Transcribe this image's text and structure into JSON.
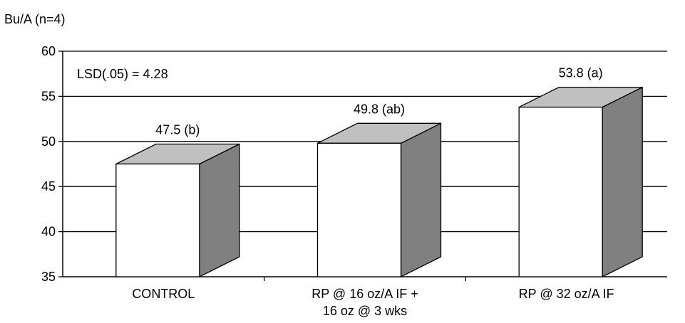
{
  "chart_data": {
    "type": "bar",
    "ylabel": "Bu/A (n=4)",
    "annotation": "LSD(.05) = 4.28",
    "categories": [
      [
        "CONTROL"
      ],
      [
        "RP @ 16 oz/A IF +",
        "16 oz @ 3 wks"
      ],
      [
        "RP @ 32 oz/A IF"
      ]
    ],
    "values": [
      47.5,
      49.8,
      53.8
    ],
    "data_labels": [
      "47.5 (b)",
      "49.8 (ab)",
      "53.8 (a)"
    ],
    "ylim": [
      35,
      60
    ],
    "yticks": [
      35,
      40,
      45,
      50,
      55,
      60
    ],
    "grid": true,
    "legend": "none",
    "style": "3d",
    "colors": {
      "front": "#ffffff",
      "top": "#c0c0c0",
      "side": "#808080",
      "stroke": "#000000"
    }
  }
}
